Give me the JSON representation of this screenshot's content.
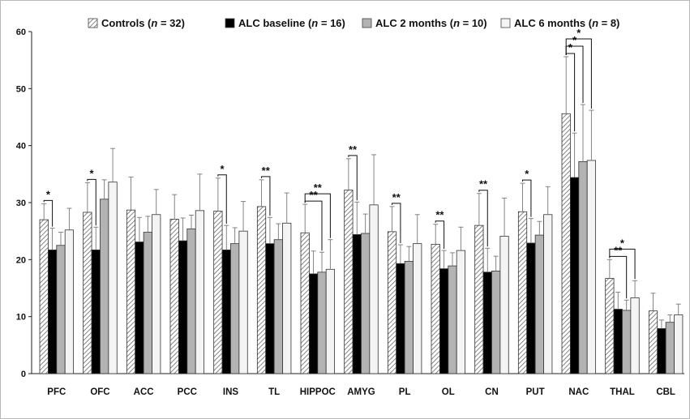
{
  "chart_data": {
    "type": "bar",
    "ylim": [
      0,
      60
    ],
    "yticks": [
      "0",
      "10",
      "20",
      "30",
      "40",
      "50",
      "60"
    ],
    "categories": [
      "PFC",
      "OFC",
      "ACC",
      "PCC",
      "INS",
      "TL",
      "HIPPOC",
      "AMYG",
      "PL",
      "OL",
      "CN",
      "PUT",
      "NAC",
      "THAL",
      "CBL"
    ],
    "legend": [
      {
        "label": "Controls (",
        "n_label": "n",
        "count": " = 32)"
      },
      {
        "label": "ALC baseline (",
        "n_label": "n",
        "count": " = 16)"
      },
      {
        "label": "ALC 2 months (",
        "n_label": "n",
        "count": " = 10)"
      },
      {
        "label": "ALC 6 months (",
        "n_label": "n",
        "count": " = 8)"
      }
    ],
    "series": [
      {
        "name": "Controls (n = 32)",
        "fill": "hatch",
        "values": [
          27.0,
          28.3,
          28.7,
          27.1,
          28.5,
          29.3,
          24.7,
          32.2,
          24.9,
          22.7,
          26.0,
          28.4,
          45.6,
          16.7,
          11.0
        ],
        "err": [
          2.8,
          5.2,
          5.8,
          4.3,
          5.8,
          4.7,
          5.0,
          5.5,
          4.4,
          3.5,
          5.6,
          5.0,
          10.0,
          3.3,
          3.1
        ]
      },
      {
        "name": "ALC baseline (n = 16)",
        "fill": "#000000",
        "values": [
          21.7,
          21.7,
          23.1,
          23.3,
          21.7,
          22.8,
          17.5,
          24.4,
          19.3,
          18.4,
          17.8,
          22.9,
          34.4,
          11.3,
          7.9
        ],
        "err": [
          3.8,
          4.0,
          4.3,
          4.0,
          4.3,
          4.6,
          4.0,
          5.7,
          3.3,
          3.2,
          4.2,
          4.3,
          7.8,
          3.0,
          1.5
        ]
      },
      {
        "name": "ALC 2 months (n = 10)",
        "fill": "#b3b3b3",
        "values": [
          22.5,
          30.6,
          24.8,
          25.4,
          22.8,
          23.5,
          17.8,
          24.6,
          19.7,
          18.9,
          18.0,
          24.3,
          37.2,
          11.1,
          9.0
        ],
        "err": [
          2.3,
          3.4,
          2.8,
          2.4,
          2.8,
          2.8,
          3.5,
          3.4,
          2.6,
          2.3,
          2.6,
          2.4,
          10.0,
          1.8,
          1.3
        ]
      },
      {
        "name": "ALC 6 months (n = 8)",
        "fill": "#f4f4f4",
        "values": [
          25.2,
          33.6,
          27.9,
          28.6,
          25.0,
          26.4,
          18.3,
          29.6,
          22.8,
          21.6,
          24.1,
          27.9,
          37.4,
          13.3,
          10.3
        ],
        "err": [
          3.8,
          5.9,
          4.4,
          6.4,
          5.2,
          5.3,
          5.2,
          8.8,
          5.1,
          4.1,
          6.7,
          4.9,
          8.8,
          3.0,
          1.9
        ]
      }
    ],
    "significance": [
      {
        "category": "PFC",
        "label": "*",
        "to_series": 1
      },
      {
        "category": "OFC",
        "label": "*",
        "to_series": 1
      },
      {
        "category": "INS",
        "label": "*",
        "to_series": 1
      },
      {
        "category": "TL",
        "label": "**",
        "to_series": 1
      },
      {
        "category": "HIPPOC",
        "label": "**",
        "to_series": 2
      },
      {
        "category": "HIPPOC",
        "label": "**",
        "to_series": 3
      },
      {
        "category": "AMYG",
        "label": "**",
        "to_series": 1
      },
      {
        "category": "PL",
        "label": "**",
        "to_series": 1
      },
      {
        "category": "OL",
        "label": "**",
        "to_series": 1
      },
      {
        "category": "CN",
        "label": "**",
        "to_series": 1
      },
      {
        "category": "PUT",
        "label": "*",
        "to_series": 1
      },
      {
        "category": "NAC",
        "label": "*",
        "to_series": 1
      },
      {
        "category": "NAC",
        "label": "*",
        "to_series": 2
      },
      {
        "category": "NAC",
        "label": "*",
        "to_series": 3
      },
      {
        "category": "THAL",
        "label": "**",
        "to_series": 2
      },
      {
        "category": "THAL",
        "label": "*",
        "to_series": 3
      }
    ]
  }
}
